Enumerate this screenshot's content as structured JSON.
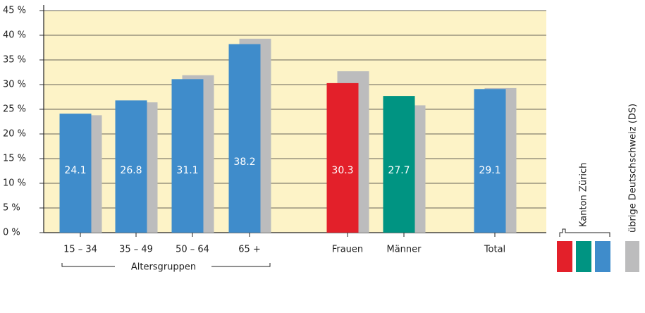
{
  "chart_data": {
    "type": "bar",
    "categories": [
      "15 – 34",
      "35 – 49",
      "50 – 64",
      "65 +",
      "Frauen",
      "Männer",
      "Total"
    ],
    "series": [
      {
        "name": "Kanton Zürich",
        "colors": [
          "#3f8ccb",
          "#3f8ccb",
          "#3f8ccb",
          "#3f8ccb",
          "#e3202a",
          "#009482",
          "#3f8ccb"
        ],
        "values": [
          24.1,
          26.8,
          31.1,
          38.2,
          30.3,
          27.7,
          29.1
        ]
      },
      {
        "name": "übrige Deutschschweiz (DS)",
        "color": "#bcbcbd",
        "values": [
          23.8,
          26.4,
          31.9,
          39.3,
          32.7,
          25.8,
          29.3
        ]
      }
    ],
    "ylim": [
      0,
      45
    ],
    "yticks": [
      {
        "value": 0,
        "label": "0 %"
      },
      {
        "value": 5,
        "label": "5 %"
      },
      {
        "value": 10,
        "label": "10 %"
      },
      {
        "value": 15,
        "label": "15 %"
      },
      {
        "value": 20,
        "label": "20 %"
      },
      {
        "value": 25,
        "label": "25 %"
      },
      {
        "value": 30,
        "label": "30 %"
      },
      {
        "value": 35,
        "label": "35 %"
      },
      {
        "value": 40,
        "label": "40 %"
      },
      {
        "value": 45,
        "label": "45 %"
      }
    ],
    "annotation": "Altersgruppen",
    "grid": true
  }
}
